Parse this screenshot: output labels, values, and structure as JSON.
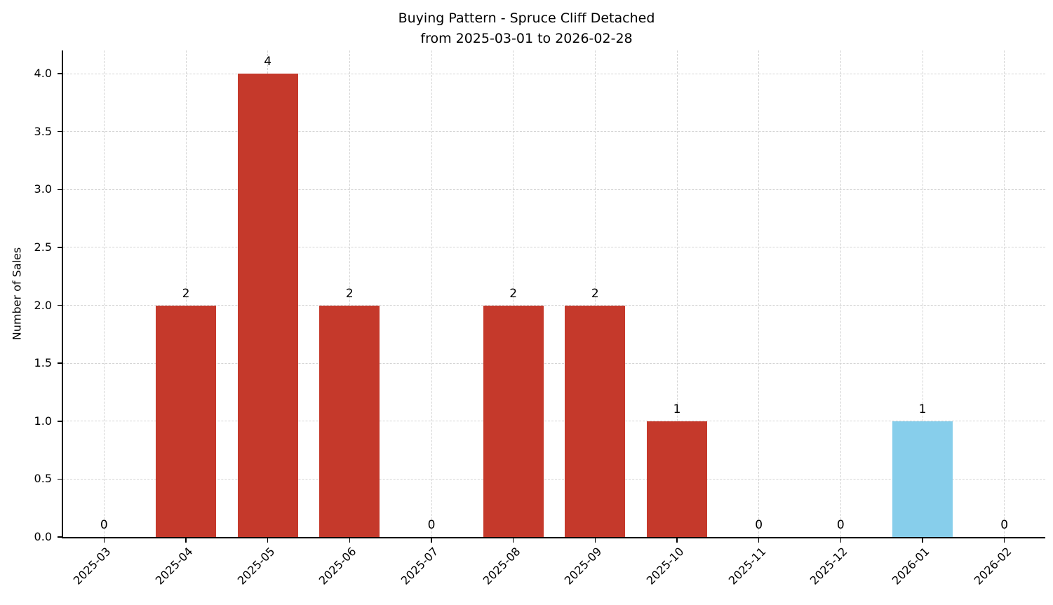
{
  "figure": {
    "title": "Buying Pattern - Spruce Cliff Detached",
    "subtitle": "from 2025-03-01 to 2026-02-28",
    "ylabel": "Number of Sales"
  },
  "chart_data": {
    "type": "bar",
    "title": "Buying Pattern - Spruce Cliff Detached\nfrom 2025-03-01 to 2026-02-28",
    "xlabel": "",
    "ylabel": "Number of Sales",
    "categories": [
      "2025-03",
      "2025-04",
      "2025-05",
      "2025-06",
      "2025-07",
      "2025-08",
      "2025-09",
      "2025-10",
      "2025-11",
      "2025-12",
      "2026-01",
      "2026-02"
    ],
    "values": [
      0,
      2,
      4,
      2,
      0,
      2,
      2,
      1,
      0,
      0,
      1,
      0
    ],
    "bar_colors": [
      "#c5392b",
      "#c5392b",
      "#c5392b",
      "#c5392b",
      "#c5392b",
      "#c5392b",
      "#c5392b",
      "#c5392b",
      "#c5392b",
      "#c5392b",
      "#87ceeb",
      "#c5392b"
    ],
    "default_bar_color": "#c5392b",
    "highlight_bar_color": "#87ceeb",
    "value_labels": [
      "0",
      "2",
      "4",
      "2",
      "0",
      "2",
      "2",
      "1",
      "0",
      "0",
      "1",
      "0"
    ],
    "ylim": [
      0,
      4.2
    ],
    "yticks": [
      0.0,
      0.5,
      1.0,
      1.5,
      2.0,
      2.5,
      3.0,
      3.5,
      4.0
    ],
    "ytick_labels": [
      "0.0",
      "0.5",
      "1.0",
      "1.5",
      "2.0",
      "2.5",
      "3.0",
      "3.5",
      "4.0"
    ],
    "grid": true,
    "grid_style": "dashed",
    "legend": "none"
  }
}
